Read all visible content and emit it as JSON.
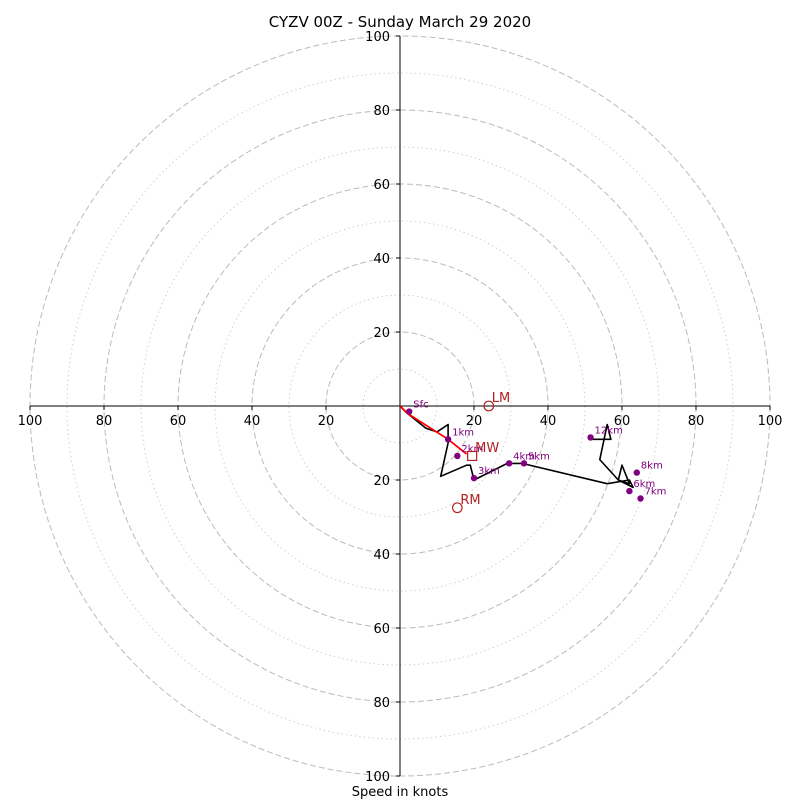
{
  "chart_data": {
    "type": "hodograph",
    "title": "CYZV 00Z - Sunday March 29 2020",
    "xlabel": "Speed in knots",
    "xlim": [
      -100,
      100
    ],
    "ylim": [
      -100,
      100
    ],
    "tick_labels": [
      "100",
      "80",
      "60",
      "40",
      "20",
      "20",
      "40",
      "60",
      "80",
      "100"
    ],
    "ring_major": [
      20,
      40,
      60,
      80,
      100
    ],
    "ring_minor": [
      10,
      30,
      50,
      70,
      90
    ],
    "grid": true,
    "colors": {
      "trace": "#000000",
      "lowlevel": "#ff0000",
      "points": "#800080",
      "motion": "#b22222",
      "grid": "#bbbbbb"
    },
    "wind_trace": [
      [
        0,
        0
      ],
      [
        2,
        -2
      ],
      [
        7,
        -6
      ],
      [
        10,
        -7
      ],
      [
        13,
        -5
      ],
      [
        13,
        -10
      ],
      [
        11,
        -19
      ],
      [
        18,
        -16
      ],
      [
        19,
        -16
      ],
      [
        20,
        -20
      ],
      [
        29,
        -15.5
      ],
      [
        33,
        -15.5
      ],
      [
        56,
        -21
      ],
      [
        62,
        -20
      ],
      [
        63,
        -22
      ],
      [
        59,
        -20
      ],
      [
        60,
        -16
      ],
      [
        62,
        -21
      ],
      [
        59,
        -20
      ],
      [
        54,
        -14.5
      ],
      [
        56,
        -5
      ],
      [
        57,
        -9
      ],
      [
        51,
        -9
      ]
    ],
    "lowlevel_segment": [
      [
        0,
        0
      ],
      [
        2,
        -2
      ],
      [
        13,
        -9
      ],
      [
        18,
        -13
      ]
    ],
    "height_points": [
      {
        "label": "Sfc",
        "u": 2.5,
        "v": -1.5
      },
      {
        "label": "1km",
        "u": 13,
        "v": -9
      },
      {
        "label": "2km",
        "u": 15.5,
        "v": -13.5
      },
      {
        "label": "3km",
        "u": 20,
        "v": -19.5
      },
      {
        "label": "4km",
        "u": 29.5,
        "v": -15.5
      },
      {
        "label": "5km",
        "u": 33.5,
        "v": -15.5
      },
      {
        "label": "6km",
        "u": 62,
        "v": -23
      },
      {
        "label": "7km",
        "u": 65,
        "v": -25
      },
      {
        "label": "8km",
        "u": 64,
        "v": -18
      },
      {
        "label": "12km",
        "u": 51.5,
        "v": -8.5
      }
    ],
    "storm_motion": [
      {
        "label": "LM",
        "u": 24,
        "v": 0,
        "marker": "circle"
      },
      {
        "label": "RM",
        "u": 15.5,
        "v": -27.5,
        "marker": "circle"
      },
      {
        "label": "MW",
        "u": 19.5,
        "v": -13.5,
        "marker": "square"
      }
    ]
  }
}
